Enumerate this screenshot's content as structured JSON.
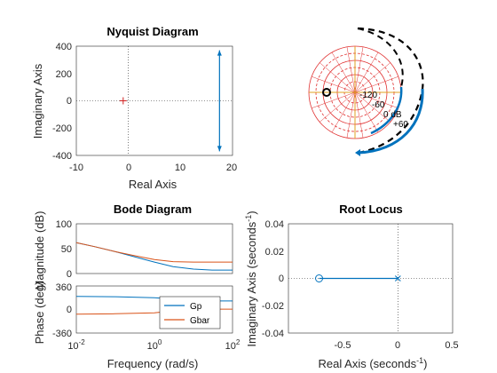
{
  "chart_data": [
    {
      "type": "line",
      "title": "Nyquist Diagram",
      "xlabel": "Real Axis",
      "ylabel": "Imaginary Axis",
      "xlim": [
        -10,
        20
      ],
      "ylim": [
        -400,
        400
      ],
      "xticks": [
        "-10",
        "0",
        "10",
        "20"
      ],
      "yticks": [
        "400",
        "200",
        "0",
        "-200",
        "-400"
      ],
      "critical_point": [
        -1,
        0
      ],
      "series": [
        {
          "color": "#0072BD",
          "x": [
            17.5,
            17.5
          ],
          "y": [
            -370,
            370
          ]
        }
      ],
      "grid": false
    },
    {
      "type": "line",
      "description_type": "nichols-style polar grid",
      "grid_labels": [
        "-120",
        "-60",
        "0 dB",
        "+60"
      ],
      "colors": {
        "grid": "#e03030",
        "dashed_curve": "#000000",
        "solid_curve": "#0072BD"
      }
    },
    {
      "type": "line",
      "title": "Bode Diagram",
      "xlabel": "Frequency  (rad/s)",
      "ylabel_top": "Magnitude (dB)",
      "ylabel_bottom": "Phase (deg)",
      "x_scale": "log",
      "xticks": [
        "10^-2",
        "10^0",
        "10^2"
      ],
      "magnitude": {
        "ylim": [
          0,
          100
        ],
        "yticks": [
          "100",
          "50",
          "0"
        ],
        "x": [
          0.01,
          0.03,
          0.1,
          0.3,
          1,
          3,
          10,
          30,
          100
        ],
        "series": [
          {
            "name": "Gp",
            "color": "#0072BD",
            "values": [
              62,
              54,
              44,
              34,
              23,
              14,
              9,
              7,
              7
            ]
          },
          {
            "name": "Gbar",
            "color": "#D95319",
            "values": [
              62,
              54,
              44,
              36,
              28,
              24,
              23,
              23,
              23
            ]
          }
        ]
      },
      "phase": {
        "ylim": [
          -360,
          360
        ],
        "yticks": [
          "360",
          "0",
          "-360"
        ],
        "x": [
          0.01,
          0.1,
          1,
          3,
          10,
          30,
          100
        ],
        "series": [
          {
            "name": "Gp",
            "color": "#0072BD",
            "values": [
              200,
              195,
              180,
              160,
              140,
              130,
              130
            ]
          },
          {
            "name": "Gbar",
            "color": "#D95319",
            "values": [
              -70,
              -65,
              -50,
              -20,
              0,
              5,
              5
            ]
          }
        ]
      },
      "legend": [
        "Gp",
        "Gbar"
      ],
      "legend_position": "bottom-right"
    },
    {
      "type": "scatter",
      "title": "Root Locus",
      "xlabel": "Real Axis (seconds",
      "xlabel_sup": "-1",
      "xlabel_end": ")",
      "ylabel": "Imaginary Axis (seconds",
      "ylabel_sup": "-1",
      "ylabel_end": ")",
      "xlim": [
        -1,
        0.5
      ],
      "ylim": [
        -0.04,
        0.04
      ],
      "xticks": [
        "-0.5",
        "0",
        "0.5"
      ],
      "yticks": [
        "0.04",
        "0.02",
        "0",
        "-0.02",
        "-0.04"
      ],
      "zeros": [
        [
          -0.72,
          0
        ]
      ],
      "poles": [
        [
          0,
          0
        ]
      ],
      "branch": {
        "color": "#0072BD",
        "x": [
          -0.72,
          0
        ],
        "y": [
          0,
          0
        ]
      }
    }
  ]
}
